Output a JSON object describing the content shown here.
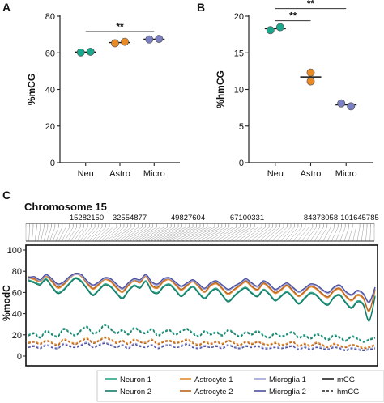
{
  "chart_data": [
    {
      "panel": "A",
      "type": "scatter",
      "categories": [
        "Neu",
        "Astro",
        "Micro"
      ],
      "ylabel": "%mCG",
      "ylim": [
        0,
        80
      ],
      "yticks": [
        0,
        20,
        40,
        60,
        80
      ],
      "series": [
        {
          "category": "Neu",
          "points": [
            60.2,
            60.6
          ],
          "mean": 60.4,
          "color": "#1aa88c"
        },
        {
          "category": "Astro",
          "points": [
            65.2,
            66.0
          ],
          "mean": 65.6,
          "color": "#e98a25"
        },
        {
          "category": "Micro",
          "points": [
            67.3,
            67.6
          ],
          "mean": 67.4,
          "color": "#7b7fc4"
        }
      ],
      "significance": [
        {
          "from": "Neu",
          "to": "Micro",
          "label": "**"
        }
      ]
    },
    {
      "panel": "B",
      "type": "scatter",
      "categories": [
        "Neu",
        "Astro",
        "Micro"
      ],
      "ylabel": "%hmCG",
      "ylim": [
        0,
        20
      ],
      "yticks": [
        0,
        5,
        10,
        15,
        20
      ],
      "series": [
        {
          "category": "Neu",
          "points": [
            18.1,
            18.5
          ],
          "mean": 18.3,
          "color": "#1aa88c"
        },
        {
          "category": "Astro",
          "points": [
            12.3,
            11.1
          ],
          "mean": 11.7,
          "color": "#e98a25"
        },
        {
          "category": "Micro",
          "points": [
            8.1,
            7.7
          ],
          "mean": 7.9,
          "color": "#7b7fc4"
        }
      ],
      "significance": [
        {
          "from": "Neu",
          "to": "Astro",
          "label": "**"
        },
        {
          "from": "Neu",
          "to": "Micro",
          "label": "**"
        }
      ]
    },
    {
      "panel": "C",
      "type": "line",
      "title": "Chromosome 15",
      "positions": [
        "15282150",
        "32554877",
        "49827604",
        "67100331",
        "84373058",
        "101645785"
      ],
      "ylabel": "%modC",
      "ylim": [
        0,
        100
      ],
      "yticks": [
        0,
        20,
        40,
        60,
        80,
        100
      ],
      "n_points": 60,
      "series": [
        {
          "name": "Neuron 1",
          "mark": "mCG",
          "color": "#2aa58a",
          "values": [
            72,
            70,
            68,
            73,
            66,
            60,
            63,
            69,
            74,
            71,
            64,
            58,
            63,
            68,
            66,
            60,
            55,
            62,
            67,
            65,
            71,
            62,
            60,
            66,
            68,
            63,
            57,
            62,
            66,
            60,
            55,
            61,
            64,
            58,
            52,
            57,
            62,
            65,
            60,
            57,
            63,
            59,
            53,
            57,
            61,
            56,
            50,
            55,
            60,
            58,
            52,
            49,
            56,
            58,
            51,
            46,
            52,
            49,
            34,
            57
          ]
        },
        {
          "name": "Neuron 2",
          "mark": "mCG",
          "color": "#137a66",
          "values": [
            71,
            69,
            67,
            72,
            65,
            59,
            62,
            68,
            73,
            70,
            63,
            57,
            62,
            67,
            65,
            59,
            54,
            61,
            66,
            64,
            70,
            61,
            59,
            65,
            67,
            62,
            56,
            61,
            65,
            59,
            54,
            60,
            63,
            57,
            51,
            56,
            61,
            64,
            59,
            56,
            62,
            58,
            52,
            56,
            60,
            55,
            49,
            54,
            59,
            57,
            51,
            48,
            55,
            57,
            50,
            45,
            51,
            48,
            33,
            56
          ]
        },
        {
          "name": "Astrocyte 1",
          "mark": "mCG",
          "color": "#e38c33",
          "values": [
            74,
            72,
            70,
            75,
            70,
            64,
            67,
            73,
            77,
            75,
            68,
            63,
            67,
            72,
            70,
            64,
            60,
            66,
            71,
            69,
            75,
            66,
            64,
            70,
            72,
            67,
            62,
            66,
            70,
            65,
            60,
            66,
            68,
            63,
            58,
            62,
            66,
            70,
            65,
            62,
            68,
            64,
            59,
            62,
            66,
            61,
            56,
            60,
            65,
            63,
            58,
            55,
            61,
            63,
            56,
            52,
            57,
            54,
            42,
            62
          ]
        },
        {
          "name": "Astrocyte 2",
          "mark": "mCG",
          "color": "#b8621e",
          "values": [
            75,
            73,
            71,
            76,
            71,
            65,
            68,
            74,
            78,
            76,
            69,
            64,
            68,
            73,
            71,
            65,
            61,
            67,
            72,
            70,
            76,
            67,
            65,
            71,
            73,
            68,
            63,
            67,
            71,
            66,
            61,
            67,
            69,
            64,
            59,
            63,
            67,
            71,
            66,
            63,
            69,
            65,
            60,
            63,
            67,
            62,
            57,
            61,
            66,
            64,
            59,
            56,
            62,
            64,
            57,
            53,
            58,
            55,
            43,
            63
          ]
        },
        {
          "name": "Microglia 1",
          "mark": "mCG",
          "color": "#9da2d6",
          "values": [
            73,
            74,
            71,
            76,
            72,
            67,
            69,
            74,
            77,
            76,
            70,
            66,
            69,
            73,
            72,
            67,
            63,
            68,
            72,
            71,
            76,
            69,
            67,
            72,
            73,
            69,
            65,
            68,
            71,
            67,
            63,
            68,
            70,
            66,
            62,
            65,
            68,
            72,
            68,
            65,
            70,
            67,
            62,
            65,
            68,
            64,
            60,
            63,
            67,
            66,
            62,
            59,
            64,
            66,
            60,
            57,
            61,
            58,
            50,
            64
          ]
        },
        {
          "name": "Microglia 2",
          "mark": "mCG",
          "color": "#4b4f9e",
          "values": [
            74,
            75,
            72,
            77,
            73,
            68,
            70,
            75,
            78,
            77,
            71,
            67,
            70,
            74,
            73,
            68,
            64,
            69,
            73,
            72,
            77,
            70,
            68,
            73,
            74,
            70,
            66,
            69,
            72,
            68,
            64,
            69,
            71,
            67,
            63,
            66,
            69,
            73,
            69,
            66,
            71,
            68,
            63,
            66,
            69,
            65,
            61,
            64,
            68,
            67,
            63,
            60,
            65,
            67,
            61,
            58,
            62,
            59,
            51,
            65
          ]
        },
        {
          "name": "Neuron 1",
          "mark": "hmCG",
          "color": "#2aa58a",
          "values": [
            20,
            22,
            18,
            24,
            21,
            19,
            26,
            23,
            20,
            25,
            28,
            22,
            24,
            30,
            26,
            22,
            25,
            21,
            27,
            24,
            22,
            26,
            20,
            23,
            25,
            21,
            24,
            26,
            22,
            19,
            24,
            21,
            23,
            20,
            25,
            22,
            19,
            23,
            21,
            24,
            20,
            18,
            22,
            19,
            21,
            23,
            18,
            20,
            17,
            21,
            19,
            16,
            20,
            18,
            15,
            19,
            17,
            14,
            16,
            18
          ]
        },
        {
          "name": "Neuron 2",
          "mark": "hmCG",
          "color": "#137a66",
          "values": [
            19,
            21,
            17,
            23,
            20,
            18,
            25,
            22,
            19,
            24,
            27,
            21,
            23,
            29,
            25,
            21,
            24,
            20,
            26,
            23,
            21,
            25,
            19,
            22,
            24,
            20,
            23,
            25,
            21,
            18,
            23,
            20,
            22,
            19,
            24,
            21,
            18,
            22,
            20,
            23,
            19,
            17,
            21,
            18,
            20,
            22,
            17,
            19,
            16,
            20,
            18,
            15,
            19,
            17,
            14,
            18,
            16,
            13,
            15,
            17
          ]
        },
        {
          "name": "Astrocyte 1",
          "mark": "hmCG",
          "color": "#e38c33",
          "values": [
            13,
            14,
            12,
            15,
            13,
            11,
            16,
            14,
            12,
            15,
            17,
            13,
            15,
            18,
            16,
            13,
            15,
            12,
            16,
            14,
            13,
            16,
            12,
            14,
            15,
            13,
            14,
            16,
            13,
            11,
            14,
            12,
            14,
            12,
            15,
            13,
            11,
            14,
            12,
            14,
            12,
            11,
            13,
            11,
            12,
            14,
            10,
            12,
            10,
            13,
            11,
            9,
            12,
            10,
            9,
            11,
            10,
            8,
            9,
            11
          ]
        },
        {
          "name": "Astrocyte 2",
          "mark": "hmCG",
          "color": "#b8621e",
          "values": [
            12,
            13,
            11,
            14,
            12,
            10,
            15,
            13,
            11,
            14,
            16,
            12,
            14,
            17,
            15,
            12,
            14,
            11,
            15,
            13,
            12,
            15,
            11,
            13,
            14,
            12,
            13,
            15,
            12,
            10,
            13,
            11,
            13,
            11,
            14,
            12,
            10,
            13,
            11,
            13,
            11,
            10,
            12,
            10,
            11,
            13,
            9,
            11,
            9,
            12,
            10,
            8,
            11,
            9,
            8,
            10,
            9,
            7,
            8,
            10
          ]
        },
        {
          "name": "Microglia 1",
          "mark": "hmCG",
          "color": "#9da2d6",
          "values": [
            9,
            10,
            8,
            11,
            9,
            8,
            12,
            10,
            9,
            11,
            13,
            9,
            11,
            13,
            11,
            9,
            11,
            8,
            12,
            10,
            9,
            11,
            8,
            10,
            11,
            9,
            10,
            12,
            9,
            8,
            10,
            9,
            10,
            8,
            11,
            9,
            8,
            10,
            9,
            10,
            8,
            8,
            9,
            8,
            9,
            10,
            7,
            9,
            7,
            9,
            8,
            7,
            9,
            8,
            6,
            8,
            7,
            6,
            7,
            8
          ]
        },
        {
          "name": "Microglia 2",
          "mark": "hmCG",
          "color": "#4b4f9e",
          "values": [
            8,
            9,
            7,
            10,
            8,
            7,
            11,
            9,
            8,
            10,
            12,
            8,
            10,
            12,
            10,
            8,
            10,
            7,
            11,
            9,
            8,
            10,
            7,
            9,
            10,
            8,
            9,
            11,
            8,
            7,
            9,
            8,
            9,
            7,
            10,
            8,
            7,
            9,
            8,
            9,
            7,
            7,
            8,
            7,
            8,
            9,
            6,
            8,
            6,
            8,
            7,
            6,
            8,
            7,
            5,
            7,
            6,
            5,
            6,
            7
          ]
        }
      ],
      "legend": {
        "placement": "bottom",
        "entries": [
          {
            "label": "Neuron 1",
            "color": "#2aa58a",
            "style": "solid"
          },
          {
            "label": "Astrocyte 1",
            "color": "#e38c33",
            "style": "solid"
          },
          {
            "label": "Microglia 1",
            "color": "#9da2d6",
            "style": "solid"
          },
          {
            "label": "mCG",
            "color": "#222222",
            "style": "solid"
          },
          {
            "label": "Neuron 2",
            "color": "#137a66",
            "style": "solid"
          },
          {
            "label": "Astrocyte 2",
            "color": "#b8621e",
            "style": "solid"
          },
          {
            "label": "Microglia 2",
            "color": "#4b4f9e",
            "style": "solid"
          },
          {
            "label": "hmCG",
            "color": "#222222",
            "style": "dashed"
          }
        ]
      }
    }
  ]
}
